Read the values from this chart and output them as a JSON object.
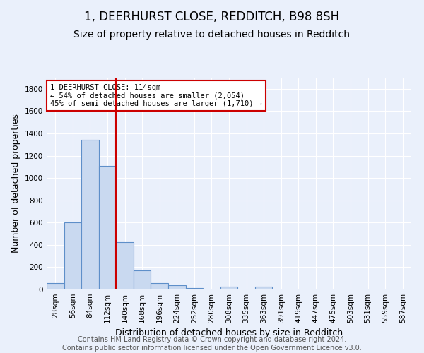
{
  "title": "1, DEERHURST CLOSE, REDDITCH, B98 8SH",
  "subtitle": "Size of property relative to detached houses in Redditch",
  "xlabel": "Distribution of detached houses by size in Redditch",
  "ylabel": "Number of detached properties",
  "bar_labels": [
    "28sqm",
    "56sqm",
    "84sqm",
    "112sqm",
    "140sqm",
    "168sqm",
    "196sqm",
    "224sqm",
    "252sqm",
    "280sqm",
    "308sqm",
    "335sqm",
    "363sqm",
    "391sqm",
    "419sqm",
    "447sqm",
    "475sqm",
    "503sqm",
    "531sqm",
    "559sqm",
    "587sqm"
  ],
  "bar_values": [
    55,
    600,
    1340,
    1110,
    425,
    170,
    60,
    38,
    15,
    0,
    25,
    0,
    25,
    0,
    0,
    0,
    0,
    0,
    0,
    0,
    0
  ],
  "bar_color": "#c9d9f0",
  "bar_edge_color": "#5e8fc9",
  "vline_x": 3.5,
  "vline_color": "#cc0000",
  "annotation_text": "1 DEERHURST CLOSE: 114sqm\n← 54% of detached houses are smaller (2,054)\n45% of semi-detached houses are larger (1,710) →",
  "annotation_box_color": "#ffffff",
  "annotation_box_edge": "#cc0000",
  "ylim": [
    0,
    1900
  ],
  "yticks": [
    0,
    200,
    400,
    600,
    800,
    1000,
    1200,
    1400,
    1600,
    1800
  ],
  "footer_text": "Contains HM Land Registry data © Crown copyright and database right 2024.\nContains public sector information licensed under the Open Government Licence v3.0.",
  "bg_color": "#eaf0fb",
  "grid_color": "#ffffff",
  "title_fontsize": 12,
  "subtitle_fontsize": 10,
  "axis_label_fontsize": 9,
  "tick_fontsize": 7.5,
  "footer_fontsize": 7
}
